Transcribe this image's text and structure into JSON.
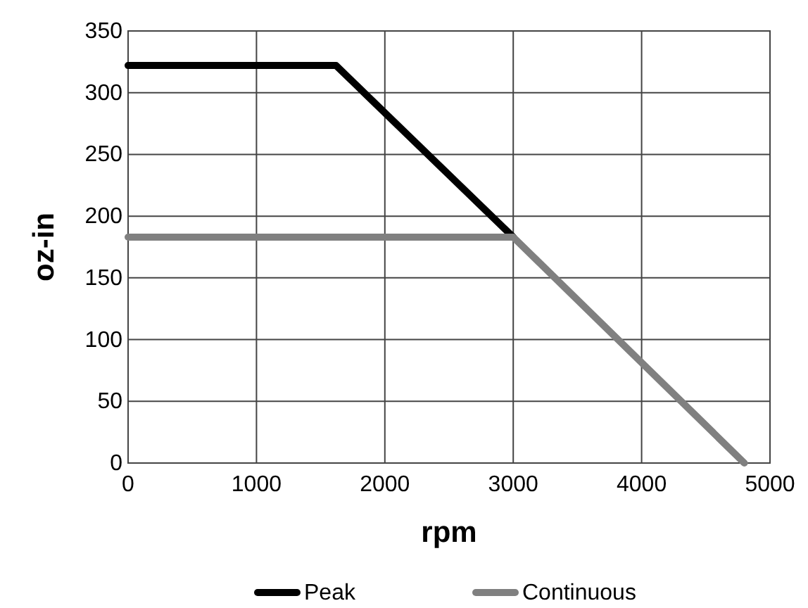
{
  "chart_data": {
    "type": "line",
    "xlabel": "rpm",
    "ylabel": "oz-in",
    "xlim": [
      0,
      5000
    ],
    "xticks": [
      0,
      1000,
      2000,
      3000,
      4000,
      5000
    ],
    "ylim": [
      0,
      350
    ],
    "yticks": [
      0,
      50,
      100,
      150,
      200,
      250,
      300,
      350
    ],
    "grid": true,
    "legend": "bottom",
    "marker": "none",
    "line_style": "solid",
    "series": [
      {
        "name": "Peak",
        "color": "#000000",
        "x": [
          0,
          1620,
          3000
        ],
        "values": [
          322,
          322,
          183
        ]
      },
      {
        "name": "Continuous",
        "color": "#808080",
        "x": [
          0,
          3000,
          4800
        ],
        "values": [
          183,
          183,
          0
        ]
      }
    ]
  }
}
